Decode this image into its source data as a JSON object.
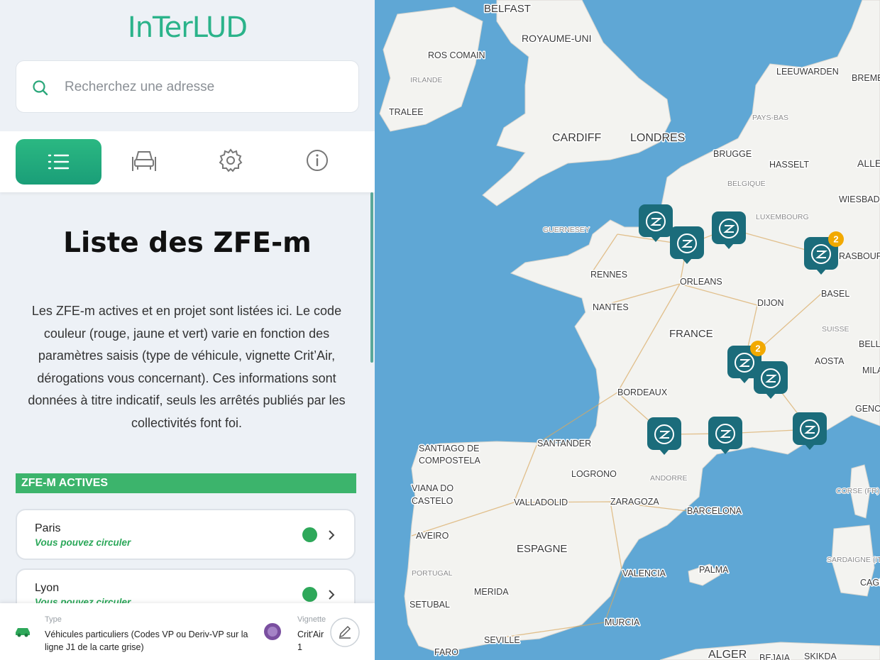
{
  "header": {
    "logo": "InTerLUD",
    "search_placeholder": "Recherchez une adresse"
  },
  "panel": {
    "title": "Liste des ZFE-m",
    "description": "Les ZFE-m actives et en projet sont listées ici. Le code couleur (rouge, jaune et vert) varie en fonction des paramètres saisis (type de véhicule, vignette Crit’Air, dérogations vous concernant). Ces informations sont données à titre indicatif, seuls les arrêtés publiés par les collectivités font foi.",
    "section": "ZFE-M ACTIVES",
    "zones": [
      {
        "name": "Paris",
        "status": "Vous pouvez circuler"
      },
      {
        "name": "Lyon",
        "status": "Vous pouvez circuler"
      }
    ]
  },
  "footer": {
    "type_label": "Type",
    "type_value": "Véhicules particuliers (Codes VP ou Deriv-VP sur la ligne J1 de la carte grise)",
    "vignette_label": "Vignette",
    "vignette_value": "Crit'Air 1"
  },
  "map": {
    "labels": [
      "BELFAST",
      "ROYAUME-UNI",
      "ROS COMAIN",
      "IRLANDE",
      "TRALEE",
      "CARDIFF",
      "LONDRES",
      "LEEUWARDEN",
      "BREME",
      "PAYS-BAS",
      "BRUGGE",
      "HASSELT",
      "ALLE",
      "BELGIQUE",
      "WIESBADE",
      "LUXEMBOURG",
      "GUERNESEY",
      "RENNES",
      "ORLEANS",
      "NANTES",
      "DIJON",
      "BASEL",
      "FRANCE",
      "SUISSE",
      "RASBOURG",
      "BELL",
      "AOSTA",
      "MILA",
      "BORDEAUX",
      "GENO",
      "SANTANDER",
      "SANTIAGO DE",
      "COMPOSTELA",
      "LOGRONO",
      "ANDORRE",
      "VIANA DO",
      "CASTELO",
      "VALLADOLID",
      "ZARAGOZA",
      "BARCELONA",
      "AVEIRO",
      "ESPAGNE",
      "CORSE (FR)",
      "PORTUGAL",
      "VALENCIA",
      "PALMA",
      "SARDAIGNE (IT)",
      "CAGL",
      "MERIDA",
      "SETUBAL",
      "MURCIA",
      "SEVILLE",
      "FARO",
      "ALGER",
      "BEJAIA",
      "SKIKDA"
    ],
    "cluster_counts": [
      2,
      2
    ]
  }
}
